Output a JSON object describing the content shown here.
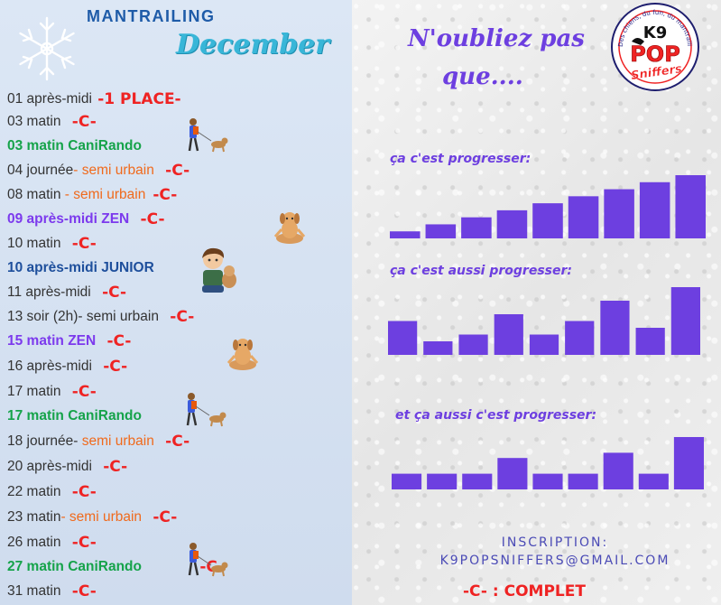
{
  "left": {
    "title": "MANTRAILING",
    "subtitle": "December",
    "rows": [
      {
        "parts": [
          {
            "t": "01 après-midi ",
            "c": "dark"
          }
        ],
        "mark": "-1 PLACE-"
      },
      {
        "parts": [
          {
            "t": "03 matin ",
            "c": "dark"
          }
        ],
        "mark": "-C-"
      },
      {
        "parts": [
          {
            "t": "03 matin CaniRando",
            "c": "green"
          }
        ],
        "mark": ""
      },
      {
        "parts": [
          {
            "t": "04 journée",
            "c": "dark"
          },
          {
            "t": "- semi urbain ",
            "c": "orange"
          }
        ],
        "mark": "-C-"
      },
      {
        "parts": [
          {
            "t": "08 matin ",
            "c": "dark"
          },
          {
            "t": "- semi urbain",
            "c": "orange"
          }
        ],
        "mark": "-C-"
      },
      {
        "parts": [
          {
            "t": "09 après-midi ZEN ",
            "c": "purple"
          }
        ],
        "mark": "-C-"
      },
      {
        "parts": [
          {
            "t": "10 matin ",
            "c": "dark"
          }
        ],
        "mark": "-C-"
      },
      {
        "parts": [
          {
            "t": "10 après-midi JUNIOR",
            "c": "blue"
          }
        ],
        "mark": ""
      },
      {
        "parts": [
          {
            "t": "11 après-midi ",
            "c": "dark"
          }
        ],
        "mark": "-C-"
      },
      {
        "parts": [
          {
            "t": "13 soir (2h)- semi urbain ",
            "c": "dark"
          }
        ],
        "mark": "-C-"
      },
      {
        "parts": [
          {
            "t": "15 matin ZEN ",
            "c": "purple"
          }
        ],
        "mark": "-C-"
      },
      {
        "parts": [
          {
            "t": "16 après-midi ",
            "c": "dark"
          }
        ],
        "mark": "-C-"
      },
      {
        "parts": [
          {
            "t": "17 matin ",
            "c": "dark"
          }
        ],
        "mark": "-C-"
      },
      {
        "parts": [
          {
            "t": "17 matin CaniRando",
            "c": "green"
          }
        ],
        "mark": ""
      },
      {
        "parts": [
          {
            "t": "18 journée- ",
            "c": "dark"
          },
          {
            "t": "semi urbain ",
            "c": "orange"
          }
        ],
        "mark": "-C-"
      },
      {
        "parts": [
          {
            "t": "20 après-midi ",
            "c": "dark"
          }
        ],
        "mark": "-C-"
      },
      {
        "parts": [
          {
            "t": "22 matin ",
            "c": "dark"
          }
        ],
        "mark": "-C-"
      },
      {
        "parts": [
          {
            "t": "23 matin",
            "c": "dark"
          },
          {
            "t": "- semi urbain ",
            "c": "orange"
          }
        ],
        "mark": "-C-"
      },
      {
        "parts": [
          {
            "t": "26 matin ",
            "c": "dark"
          }
        ],
        "mark": "-C-"
      },
      {
        "parts": [
          {
            "t": "27 matin CaniRando ",
            "c": "green"
          }
        ],
        "mark": "-C-"
      },
      {
        "parts": [
          {
            "t": "31 matin ",
            "c": "dark"
          }
        ],
        "mark": "-C-"
      }
    ]
  },
  "right": {
    "heading_line1": "N'oubliez pas",
    "heading_line2": "que....",
    "label1": "ça c'est progresser:",
    "label2": "ça c'est aussi progresser:",
    "label3": "et ça aussi c'est progresser:",
    "inscription_label": "INSCRIPTION:",
    "email": "K9POPSNIFFERS@GMAIL.COM",
    "legend": "-C- : COMPLET"
  },
  "logo": {
    "ring_text": "Des chiens, du fun, du mantrailing",
    "k9": "K9",
    "pop": "POP",
    "sniffers": "Sniffers"
  },
  "colors": {
    "accent": "#6d3fe0",
    "complet": "#ef2323",
    "green": "#16a34a",
    "orange": "#f06a1c"
  },
  "chart_data": [
    {
      "type": "bar",
      "values": [
        1,
        2,
        3,
        4,
        5,
        6,
        7,
        8,
        9
      ]
    },
    {
      "type": "bar",
      "values": [
        5,
        2,
        3,
        6,
        3,
        5,
        8,
        4,
        10
      ]
    },
    {
      "type": "bar",
      "values": [
        3,
        3,
        3,
        6,
        3,
        3,
        7,
        3,
        10
      ]
    }
  ]
}
